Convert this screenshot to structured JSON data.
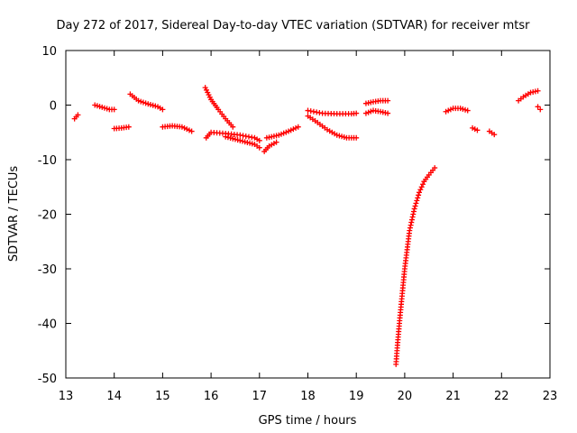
{
  "chart_data": {
    "type": "scatter",
    "title": "Day 272 of 2017, Sidereal Day-to-day VTEC variation (SDTVAR) for receiver mtsr",
    "xlabel": "GPS time / hours",
    "ylabel": "SDTVAR / TECUs",
    "xlim": [
      13,
      23
    ],
    "ylim": [
      -50,
      10
    ],
    "xticks": [
      13,
      14,
      15,
      16,
      17,
      18,
      19,
      20,
      21,
      22,
      23
    ],
    "yticks": [
      -50,
      -40,
      -30,
      -20,
      -10,
      0,
      10
    ],
    "marker": "+",
    "marker_color": "#ff0000",
    "grid": false,
    "series": [
      {
        "name": "SDTVAR",
        "segments": [
          {
            "x": [
              13.18,
              13.25
            ],
            "y": [
              -2.5,
              -1.8
            ]
          },
          {
            "x": [
              13.6,
              13.75,
              13.9,
              14.0
            ],
            "y": [
              0.0,
              -0.4,
              -0.8,
              -0.8
            ]
          },
          {
            "x": [
              14.0,
              14.15,
              14.3
            ],
            "y": [
              -4.3,
              -4.2,
              -4.0
            ]
          },
          {
            "x": [
              14.33,
              14.5,
              14.7,
              14.9,
              15.0
            ],
            "y": [
              2.0,
              0.8,
              0.2,
              -0.3,
              -0.8
            ]
          },
          {
            "x": [
              15.0,
              15.2,
              15.4,
              15.6
            ],
            "y": [
              -4.0,
              -3.8,
              -4.0,
              -4.8
            ]
          },
          {
            "x": [
              15.88,
              16.0,
              16.15,
              16.3,
              16.45
            ],
            "y": [
              3.2,
              1.0,
              -0.8,
              -2.5,
              -4.0
            ]
          },
          {
            "x": [
              15.9,
              16.0,
              16.3,
              16.6,
              16.9,
              17.0
            ],
            "y": [
              -6.0,
              -5.0,
              -5.2,
              -5.5,
              -6.0,
              -6.5
            ]
          },
          {
            "x": [
              16.3,
              16.6,
              16.9,
              17.0
            ],
            "y": [
              -5.8,
              -6.5,
              -7.2,
              -7.8
            ]
          },
          {
            "x": [
              17.1,
              17.2,
              17.35
            ],
            "y": [
              -8.5,
              -7.5,
              -6.8
            ]
          },
          {
            "x": [
              17.15,
              17.4,
              17.6,
              17.8
            ],
            "y": [
              -6.0,
              -5.5,
              -4.8,
              -4.0
            ]
          },
          {
            "x": [
              18.0,
              18.3,
              18.6,
              18.9,
              19.0
            ],
            "y": [
              -1.0,
              -1.5,
              -1.6,
              -1.6,
              -1.5
            ]
          },
          {
            "x": [
              18.0,
              18.2,
              18.4,
              18.6,
              18.8,
              19.0
            ],
            "y": [
              -2.0,
              -3.2,
              -4.5,
              -5.5,
              -6.0,
              -6.0
            ]
          },
          {
            "x": [
              19.2,
              19.35,
              19.5,
              19.65
            ],
            "y": [
              0.3,
              0.6,
              0.8,
              0.8
            ]
          },
          {
            "x": [
              19.2,
              19.35,
              19.5,
              19.65
            ],
            "y": [
              -1.5,
              -1.0,
              -1.2,
              -1.5
            ]
          },
          {
            "x": [
              19.82,
              19.85,
              19.9,
              19.95,
              20.0,
              20.05,
              20.1,
              20.2,
              20.3,
              20.4,
              20.5,
              20.62
            ],
            "y": [
              -47.5,
              -44.0,
              -39.0,
              -34.5,
              -30.0,
              -26.5,
              -23.0,
              -19.0,
              -16.0,
              -14.0,
              -12.8,
              -11.5
            ]
          },
          {
            "x": [
              20.85,
              21.0,
              21.15,
              21.3
            ],
            "y": [
              -1.2,
              -0.6,
              -0.6,
              -1.0
            ]
          },
          {
            "x": [
              21.4,
              21.5
            ],
            "y": [
              -4.2,
              -4.6
            ]
          },
          {
            "x": [
              21.75,
              21.85
            ],
            "y": [
              -4.8,
              -5.4
            ]
          },
          {
            "x": [
              22.35,
              22.45,
              22.6,
              22.75
            ],
            "y": [
              0.8,
              1.5,
              2.3,
              2.6
            ]
          },
          {
            "x": [
              22.75,
              22.8
            ],
            "y": [
              -0.3,
              -0.8
            ]
          }
        ]
      }
    ]
  }
}
